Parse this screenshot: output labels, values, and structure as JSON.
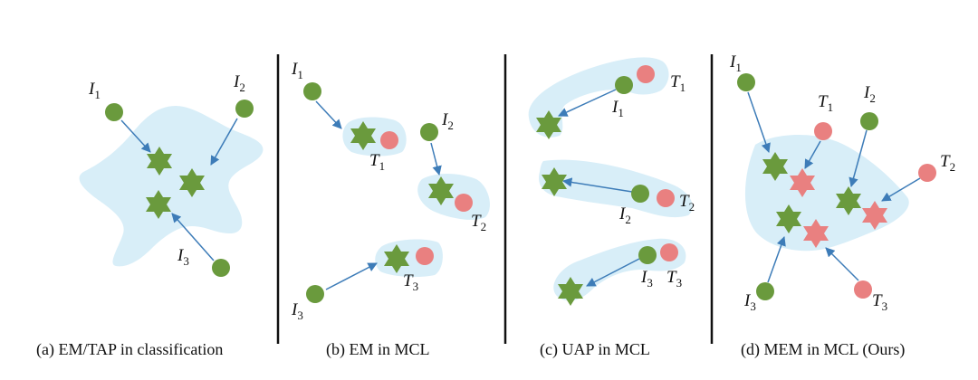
{
  "colors": {
    "region_fill": "#d8eef8",
    "image_node": "#6a9a3d",
    "text_node": "#e98080",
    "arrow": "#3d7cb8",
    "divider": "#111111"
  },
  "panels": [
    {
      "caption": "(a) EM/TAP in classification",
      "labels": {
        "I1": "I",
        "I1_sub": "1",
        "I2": "I",
        "I2_sub": "2",
        "I3": "I",
        "I3_sub": "3"
      }
    },
    {
      "caption": "(b) EM in MCL",
      "labels": {
        "I1": "I",
        "I1_sub": "1",
        "I2": "I",
        "I2_sub": "2",
        "I3": "I",
        "I3_sub": "3",
        "T1": "T",
        "T1_sub": "1",
        "T2": "T",
        "T2_sub": "2",
        "T3": "T",
        "T3_sub": "3"
      }
    },
    {
      "caption": "(c) UAP in MCL",
      "labels": {
        "I1": "I",
        "I1_sub": "1",
        "I2": "I",
        "I2_sub": "2",
        "I3": "I",
        "I3_sub": "3",
        "T1": "T",
        "T1_sub": "1",
        "T2": "T",
        "T2_sub": "2",
        "T3": "T",
        "T3_sub": "3"
      }
    },
    {
      "caption": "(d) MEM in MCL (Ours)",
      "labels": {
        "I1": "I",
        "I1_sub": "1",
        "I2": "I",
        "I2_sub": "2",
        "I3": "I",
        "I3_sub": "3",
        "T1": "T",
        "T1_sub": "1",
        "T2": "T",
        "T2_sub": "2",
        "T3": "T",
        "T3_sub": "3"
      }
    }
  ]
}
